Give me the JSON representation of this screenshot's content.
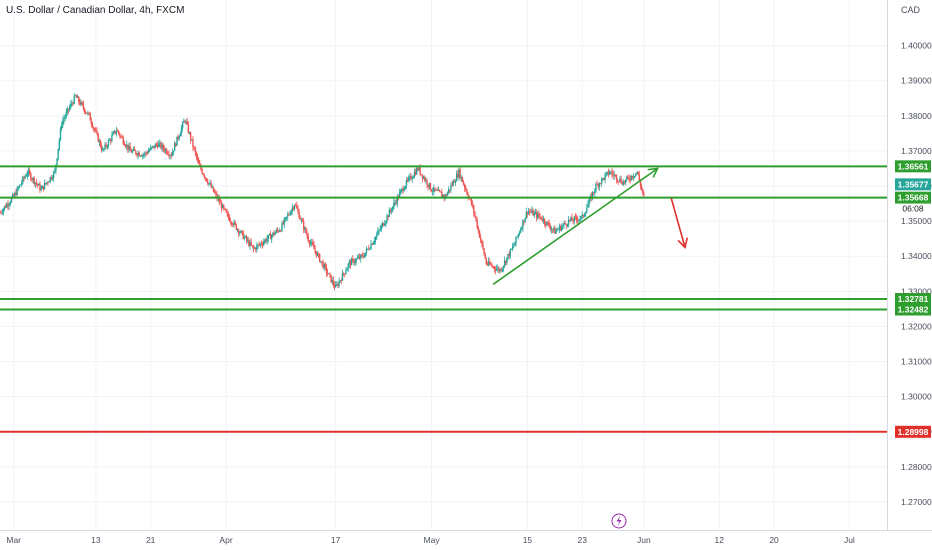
{
  "header": {
    "title": "U.S. Dollar / Canadian Dollar, 4h, FXCM",
    "currency": "CAD"
  },
  "colors": {
    "up": "#26a69a",
    "down": "#ef5350",
    "level_green": "#2e9e2e",
    "level_red": "#e0302a",
    "current_badge": "#ef5350",
    "grid": "#f0f3fa",
    "axis_text": "#4a4f5c"
  },
  "chart_data": {
    "type": "candlestick",
    "y_axis": {
      "ticks": [
        "1.40000",
        "1.39000",
        "1.38000",
        "1.37000",
        "1.36000",
        "1.35000",
        "1.34000",
        "1.33000",
        "1.32000",
        "1.31000",
        "1.30000",
        "1.29000",
        "1.28000",
        "1.27000"
      ],
      "min": 1.262,
      "max": 1.413
    },
    "x_axis": {
      "ticks": [
        "Mar",
        "13",
        "21",
        "Apr",
        "17",
        "May",
        "15",
        "23",
        "Jun",
        "12",
        "20",
        "Jul"
      ]
    },
    "price_path": [
      {
        "date": "Feb 27",
        "price": 1.3525
      },
      {
        "date": "Mar 1",
        "price": 1.357
      },
      {
        "date": "Mar 3",
        "price": 1.364
      },
      {
        "date": "Mar 5",
        "price": 1.359
      },
      {
        "date": "Mar 7",
        "price": 1.364
      },
      {
        "date": "Mar 8",
        "price": 1.378
      },
      {
        "date": "Mar 10",
        "price": 1.3855
      },
      {
        "date": "Mar 12",
        "price": 1.38
      },
      {
        "date": "Mar 14",
        "price": 1.37
      },
      {
        "date": "Mar 16",
        "price": 1.376
      },
      {
        "date": "Mar 18",
        "price": 1.37
      },
      {
        "date": "Mar 20",
        "price": 1.369
      },
      {
        "date": "Mar 22",
        "price": 1.372
      },
      {
        "date": "Mar 24",
        "price": 1.369
      },
      {
        "date": "Mar 26",
        "price": 1.379
      },
      {
        "date": "Mar 28",
        "price": 1.366
      },
      {
        "date": "Mar 30",
        "price": 1.359
      },
      {
        "date": "Apr 1",
        "price": 1.352
      },
      {
        "date": "Apr 3",
        "price": 1.347
      },
      {
        "date": "Apr 5",
        "price": 1.342
      },
      {
        "date": "Apr 7",
        "price": 1.345
      },
      {
        "date": "Apr 9",
        "price": 1.348
      },
      {
        "date": "Apr 11",
        "price": 1.355
      },
      {
        "date": "Apr 13",
        "price": 1.345
      },
      {
        "date": "Apr 15",
        "price": 1.338
      },
      {
        "date": "Apr 17",
        "price": 1.331
      },
      {
        "date": "Apr 19",
        "price": 1.338
      },
      {
        "date": "Apr 21",
        "price": 1.34
      },
      {
        "date": "Apr 23",
        "price": 1.346
      },
      {
        "date": "Apr 25",
        "price": 1.353
      },
      {
        "date": "Apr 27",
        "price": 1.36
      },
      {
        "date": "Apr 29",
        "price": 1.365
      },
      {
        "date": "May 1",
        "price": 1.359
      },
      {
        "date": "May 3",
        "price": 1.357
      },
      {
        "date": "May 5",
        "price": 1.364
      },
      {
        "date": "May 7",
        "price": 1.354
      },
      {
        "date": "May 9",
        "price": 1.338
      },
      {
        "date": "May 11",
        "price": 1.336
      },
      {
        "date": "May 13",
        "price": 1.343
      },
      {
        "date": "May 15",
        "price": 1.353
      },
      {
        "date": "May 17",
        "price": 1.351
      },
      {
        "date": "May 19",
        "price": 1.347
      },
      {
        "date": "May 21",
        "price": 1.35
      },
      {
        "date": "May 23",
        "price": 1.351
      },
      {
        "date": "May 25",
        "price": 1.36
      },
      {
        "date": "May 27",
        "price": 1.364
      },
      {
        "date": "May 29",
        "price": 1.361
      },
      {
        "date": "May 31",
        "price": 1.364
      },
      {
        "date": "Jun 1",
        "price": 1.3567
      }
    ],
    "horizontal_levels": [
      {
        "label": "1.36561",
        "price": 1.36561,
        "color": "#2e9e2e"
      },
      {
        "label": "1.35668",
        "price": 1.35668,
        "color": "#2e9e2e"
      },
      {
        "label": "1.32781",
        "price": 1.32781,
        "color": "#2e9e2e"
      },
      {
        "label": "1.32482",
        "price": 1.32482,
        "color": "#2e9e2e"
      },
      {
        "label": "1.28998",
        "price": 1.28998,
        "color": "#e0302a"
      }
    ],
    "current_price": {
      "label": "1.35677",
      "price": 1.35677,
      "countdown": "06:08"
    },
    "trendline": {
      "from": {
        "date": "May 10",
        "price": 1.332
      },
      "to": {
        "date": "Jun 3",
        "price": 1.365
      }
    },
    "projection_arrow": {
      "from": {
        "date": "Jun 5",
        "price": 1.3565
      },
      "to": {
        "date": "Jun 7",
        "price": 1.3425
      }
    }
  }
}
